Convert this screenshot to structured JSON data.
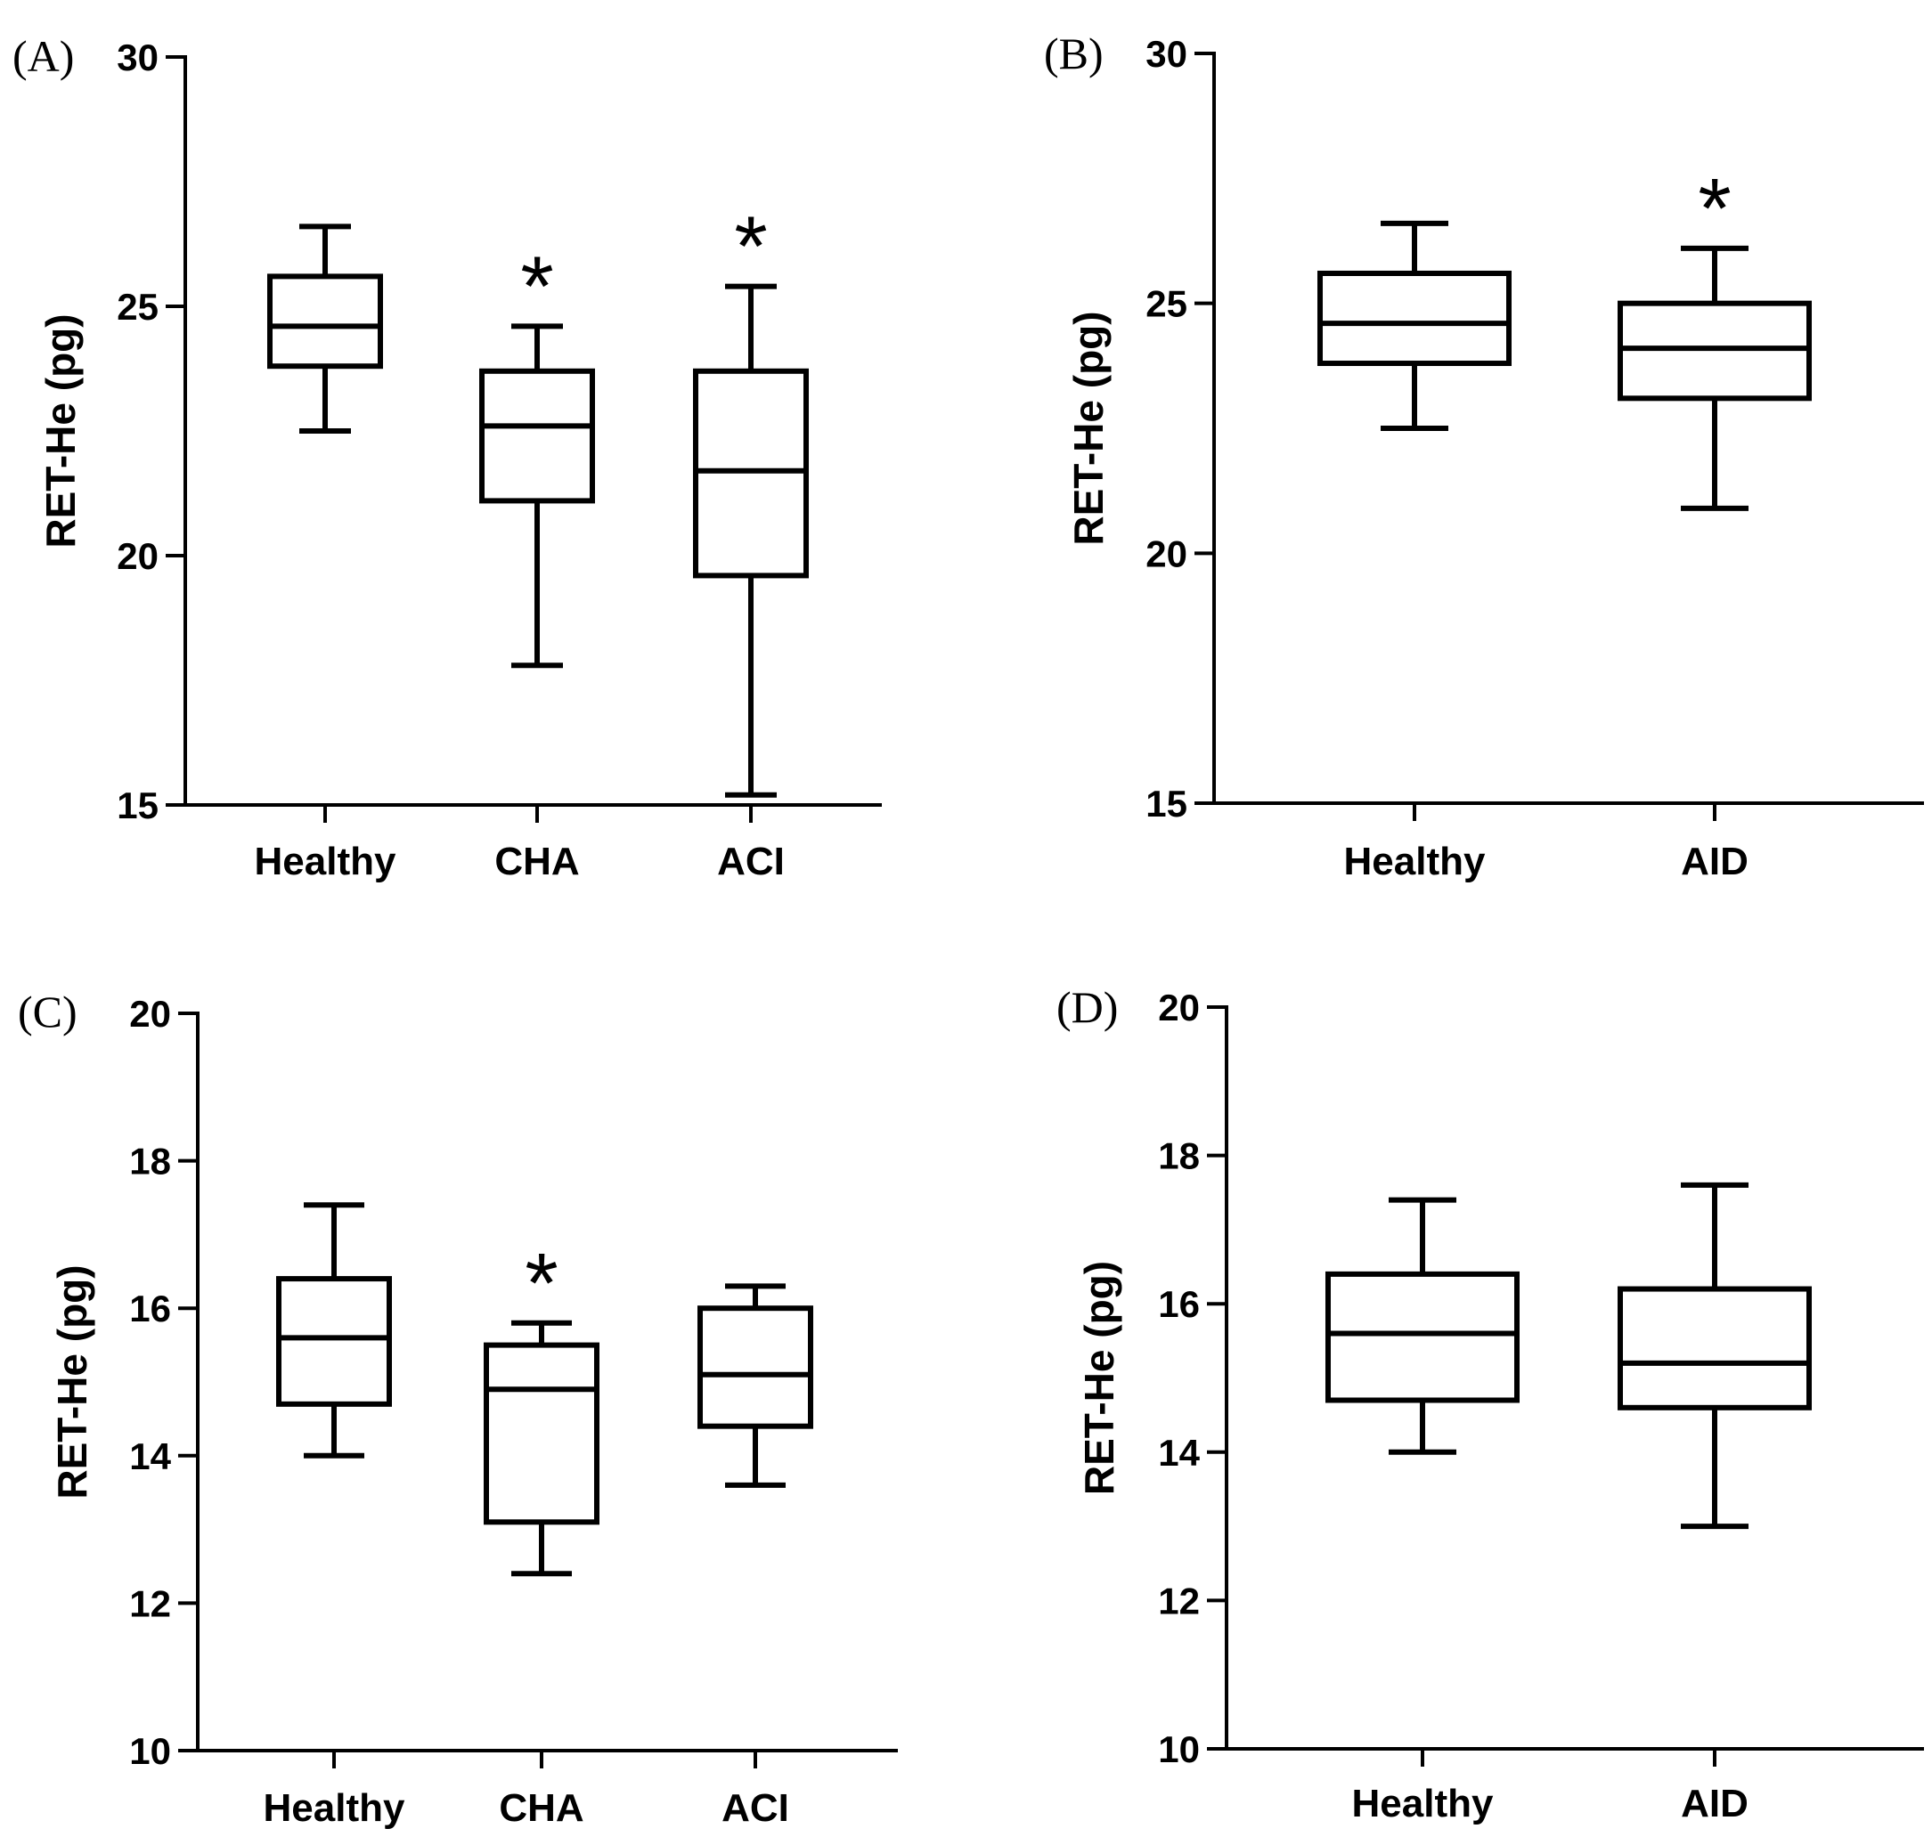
{
  "chart_data": [
    {
      "type": "boxplot",
      "panel_label": "(A)",
      "ylabel": "RET-He  (pg)",
      "ylim": [
        15,
        30
      ],
      "yticks": [
        "15",
        "20",
        "25",
        "30"
      ],
      "categories": [
        "Healthy",
        "CHA",
        "ACI"
      ],
      "boxes": [
        {
          "name": "Healthy",
          "min": 22.5,
          "q1": 23.8,
          "median": 24.6,
          "q3": 25.6,
          "max": 26.6,
          "significance": ""
        },
        {
          "name": "CHA",
          "min": 17.8,
          "q1": 21.1,
          "median": 22.6,
          "q3": 23.7,
          "max": 24.6,
          "significance": "*"
        },
        {
          "name": "ACI",
          "min": 15.2,
          "q1": 19.6,
          "median": 21.7,
          "q3": 23.7,
          "max": 25.4,
          "significance": "*"
        }
      ]
    },
    {
      "type": "boxplot",
      "panel_label": "(B)",
      "ylabel": "RET-He  (pg)",
      "ylim": [
        15,
        30
      ],
      "yticks": [
        "15",
        "20",
        "25",
        "30"
      ],
      "categories": [
        "Healthy",
        "AID"
      ],
      "boxes": [
        {
          "name": "Healthy",
          "min": 22.5,
          "q1": 23.8,
          "median": 24.6,
          "q3": 25.6,
          "max": 26.6,
          "significance": ""
        },
        {
          "name": "AID",
          "min": 20.9,
          "q1": 23.1,
          "median": 24.1,
          "q3": 25.0,
          "max": 26.1,
          "significance": "*"
        }
      ]
    },
    {
      "type": "boxplot",
      "panel_label": "(C)",
      "ylabel": "RET-He  (pg)",
      "ylim": [
        10,
        20
      ],
      "yticks": [
        "10",
        "12",
        "14",
        "16",
        "18",
        "20"
      ],
      "categories": [
        "Healthy",
        "CHA",
        "ACI"
      ],
      "boxes": [
        {
          "name": "Healthy",
          "min": 14.0,
          "q1": 14.7,
          "median": 15.6,
          "q3": 16.4,
          "max": 17.4,
          "significance": ""
        },
        {
          "name": "CHA",
          "min": 12.4,
          "q1": 13.1,
          "median": 14.9,
          "q3": 15.5,
          "max": 15.8,
          "significance": "*"
        },
        {
          "name": "ACI",
          "min": 13.6,
          "q1": 14.4,
          "median": 15.1,
          "q3": 16.0,
          "max": 16.3,
          "significance": ""
        }
      ]
    },
    {
      "type": "boxplot",
      "panel_label": "(D)",
      "ylabel": "RET-He  (pg)",
      "ylim": [
        10,
        20
      ],
      "yticks": [
        "10",
        "12",
        "14",
        "16",
        "18",
        "20"
      ],
      "categories": [
        "Healthy",
        "AID"
      ],
      "boxes": [
        {
          "name": "Healthy",
          "min": 14.0,
          "q1": 14.7,
          "median": 15.6,
          "q3": 16.4,
          "max": 17.4,
          "significance": ""
        },
        {
          "name": "AID",
          "min": 13.0,
          "q1": 14.6,
          "median": 15.2,
          "q3": 16.2,
          "max": 17.6,
          "significance": ""
        }
      ]
    }
  ]
}
